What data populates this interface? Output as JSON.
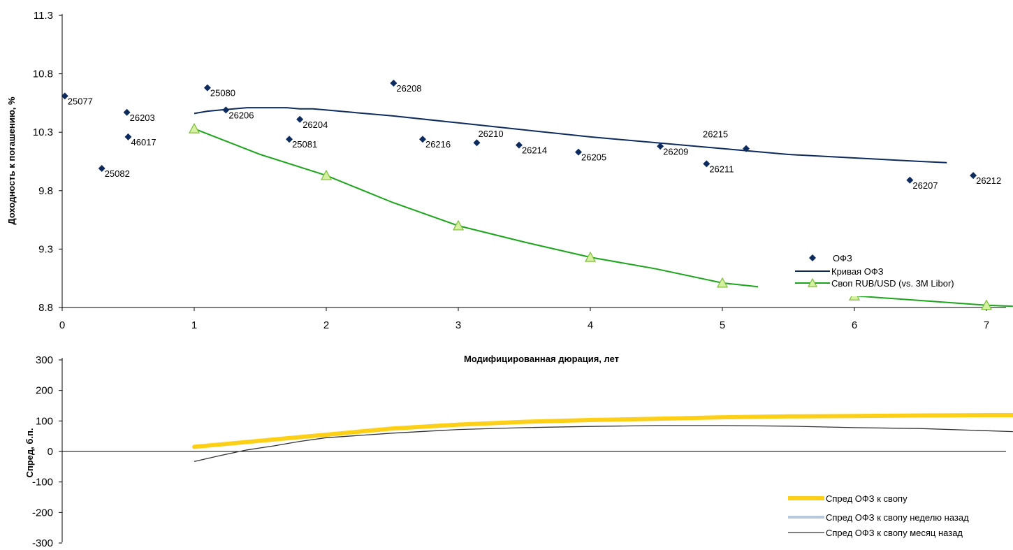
{
  "chart_data": [
    {
      "type": "scatter",
      "ylabel": "Доходность к погашению, %",
      "xlabel": "Модифицированная дюрация, лет",
      "xlim": [
        0,
        7.2
      ],
      "ylim": [
        8.8,
        11.3
      ],
      "xticks": [
        "0",
        "1",
        "2",
        "3",
        "4",
        "5",
        "6",
        "7"
      ],
      "yticks": [
        "8.8",
        "9.3",
        "9.8",
        "10.3",
        "10.8",
        "11.3"
      ],
      "legend_position": "bottom-right",
      "colors": {
        "ofz": "#0d2b5e",
        "swap": "#1aa51a",
        "swap_marker_fill": "#d7efa0"
      },
      "points": [
        {
          "label": "25077",
          "x": 0.02,
          "y": 10.61
        },
        {
          "label": "25082",
          "x": 0.3,
          "y": 9.99
        },
        {
          "label": "26203",
          "x": 0.49,
          "y": 10.47
        },
        {
          "label": "46017",
          "x": 0.5,
          "y": 10.26
        },
        {
          "label": "25080",
          "x": 1.1,
          "y": 10.68
        },
        {
          "label": "26206",
          "x": 1.24,
          "y": 10.49
        },
        {
          "label": "25081",
          "x": 1.72,
          "y": 10.24
        },
        {
          "label": "26204",
          "x": 1.8,
          "y": 10.41
        },
        {
          "label": "26208",
          "x": 2.51,
          "y": 10.72
        },
        {
          "label": "26216",
          "x": 2.73,
          "y": 10.24
        },
        {
          "label": "26210",
          "x": 3.14,
          "y": 10.21
        },
        {
          "label": "26214",
          "x": 3.46,
          "y": 10.19
        },
        {
          "label": "26205",
          "x": 3.91,
          "y": 10.13
        },
        {
          "label": "26209",
          "x": 4.53,
          "y": 10.18
        },
        {
          "label": "26211",
          "x": 4.88,
          "y": 10.03
        },
        {
          "label": "26215",
          "x": 5.18,
          "y": 10.16
        },
        {
          "label": "26207",
          "x": 6.42,
          "y": 9.89
        },
        {
          "label": "26212",
          "x": 6.9,
          "y": 9.93
        }
      ],
      "series": [
        {
          "name": "ОФЗ",
          "kind": "markers"
        },
        {
          "name": "Кривая ОФЗ",
          "kind": "line",
          "x": [
            1.0,
            1.1,
            1.2,
            1.3,
            1.4,
            1.5,
            1.6,
            1.7,
            1.8,
            1.9,
            2.0,
            2.2,
            2.5,
            3.0,
            3.5,
            4.0,
            4.5,
            5.0,
            5.5,
            6.0,
            6.5,
            6.7
          ],
          "y": [
            10.46,
            10.48,
            10.49,
            10.5,
            10.51,
            10.51,
            10.51,
            10.51,
            10.5,
            10.5,
            10.49,
            10.47,
            10.44,
            10.38,
            10.32,
            10.26,
            10.21,
            10.16,
            10.11,
            10.08,
            10.05,
            10.04
          ]
        },
        {
          "name": "Своп RUB/USD (vs. 3M Libor)",
          "kind": "line-markers",
          "x": [
            1.0,
            1.5,
            2.0,
            2.5,
            3.0,
            3.5,
            4.0,
            4.5,
            5.0,
            5.5,
            6.0,
            6.5,
            7.0,
            7.2
          ],
          "y": [
            10.33,
            10.11,
            9.93,
            9.7,
            9.5,
            9.36,
            9.23,
            9.13,
            9.01,
            8.95,
            8.9,
            8.86,
            8.82,
            8.81
          ],
          "marker_x": [
            1,
            2,
            3,
            4,
            5,
            6,
            7
          ]
        }
      ]
    },
    {
      "type": "line",
      "ylabel": "Спред, б.п.",
      "xlim": [
        0,
        7.2
      ],
      "ylim": [
        -300,
        300
      ],
      "yticks": [
        "300",
        "200",
        "100",
        "0",
        "-100",
        "-200",
        "-300"
      ],
      "legend_position": "bottom-right",
      "colors": {
        "current": "#fdd017",
        "week": "#b8c8dc",
        "month": "#333333"
      },
      "series": [
        {
          "name": "Спред ОФЗ к свопу",
          "x": [
            1.0,
            1.5,
            2.0,
            2.5,
            3.0,
            3.5,
            4.0,
            4.5,
            5.0,
            5.5,
            6.0,
            6.5,
            7.0,
            7.2
          ],
          "values": [
            15,
            35,
            55,
            75,
            88,
            97,
            103,
            107,
            112,
            115,
            116,
            118,
            119,
            119
          ]
        },
        {
          "name": "Спред ОФЗ к свопу неделю назад",
          "x": [
            1.0,
            1.5,
            2.0,
            2.5,
            3.0,
            3.5,
            4.0,
            4.5,
            5.0,
            5.5,
            6.0,
            6.5,
            7.0,
            7.2
          ],
          "values": [
            15,
            35,
            55,
            75,
            88,
            97,
            103,
            107,
            112,
            115,
            116,
            118,
            119,
            119
          ]
        },
        {
          "name": "Спред ОФЗ к свопу месяц назад",
          "x": [
            1.0,
            1.2,
            1.4,
            1.6,
            1.8,
            2.0,
            2.5,
            3.0,
            3.5,
            4.0,
            4.5,
            5.0,
            5.5,
            6.0,
            6.5,
            7.0,
            7.2
          ],
          "values": [
            -33,
            -13,
            5,
            18,
            33,
            45,
            60,
            72,
            78,
            82,
            85,
            85,
            83,
            78,
            75,
            68,
            65
          ]
        }
      ]
    }
  ]
}
